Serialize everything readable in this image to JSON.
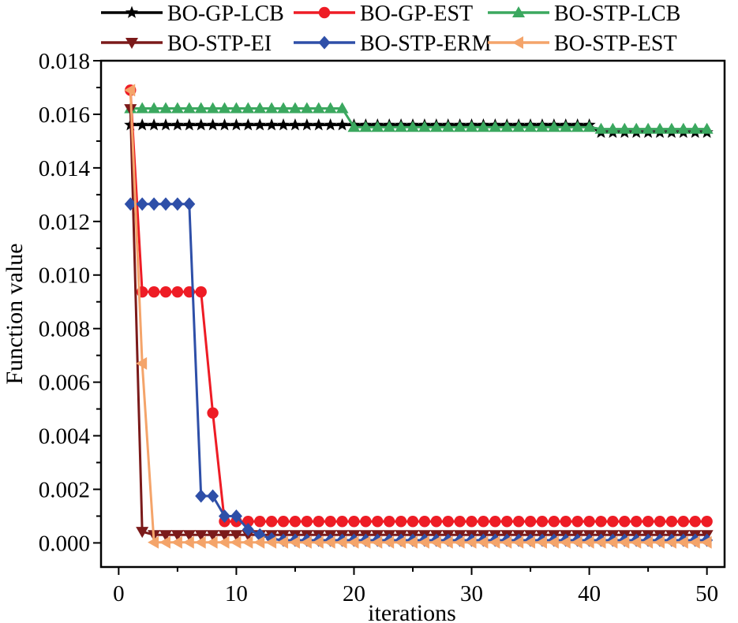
{
  "chart_data": {
    "type": "line",
    "title": "",
    "xlabel": "iterations",
    "ylabel": "Function value",
    "xlim": [
      -1.5,
      51.5
    ],
    "ylim": [
      -0.0009,
      0.018
    ],
    "xticks": [
      0,
      10,
      20,
      30,
      40,
      50
    ],
    "xtick_labels": [
      "0",
      "10",
      "20",
      "30",
      "40",
      "50"
    ],
    "yticks": [
      0.0,
      0.002,
      0.004,
      0.006,
      0.008,
      0.01,
      0.012,
      0.014,
      0.016,
      0.018
    ],
    "ytick_labels": [
      "0.000",
      "0.002",
      "0.004",
      "0.006",
      "0.008",
      "0.010",
      "0.012",
      "0.014",
      "0.016",
      "0.018"
    ],
    "grid": false,
    "legend_position": "top",
    "x": [
      1,
      2,
      3,
      4,
      5,
      6,
      7,
      8,
      9,
      10,
      11,
      12,
      13,
      14,
      15,
      16,
      17,
      18,
      19,
      20,
      21,
      22,
      23,
      24,
      25,
      26,
      27,
      28,
      29,
      30,
      31,
      32,
      33,
      34,
      35,
      36,
      37,
      38,
      39,
      40,
      41,
      42,
      43,
      44,
      45,
      46,
      47,
      48,
      49,
      50
    ],
    "series": [
      {
        "name": "BO-GP-LCB",
        "color": "#000000",
        "marker": "star",
        "values": [
          0.0156,
          0.0156,
          0.0156,
          0.0156,
          0.0156,
          0.0156,
          0.0156,
          0.0156,
          0.0156,
          0.0156,
          0.0156,
          0.0156,
          0.0156,
          0.0156,
          0.0156,
          0.0156,
          0.0156,
          0.0156,
          0.0156,
          0.0156,
          0.0156,
          0.0156,
          0.0156,
          0.0156,
          0.0156,
          0.0156,
          0.0156,
          0.0156,
          0.0156,
          0.0156,
          0.0156,
          0.0156,
          0.0156,
          0.0156,
          0.0156,
          0.0156,
          0.0156,
          0.0156,
          0.0156,
          0.0156,
          0.01532,
          0.01532,
          0.01532,
          0.01532,
          0.01532,
          0.01532,
          0.01532,
          0.01532,
          0.01532,
          0.01532
        ]
      },
      {
        "name": "BO-GP-EST",
        "color": "#ee1c25",
        "marker": "circle",
        "values": [
          0.0169,
          0.00937,
          0.00937,
          0.00937,
          0.00937,
          0.00937,
          0.00937,
          0.00485,
          0.0008,
          0.0008,
          0.0008,
          0.0008,
          0.0008,
          0.0008,
          0.0008,
          0.0008,
          0.0008,
          0.0008,
          0.0008,
          0.0008,
          0.0008,
          0.0008,
          0.0008,
          0.0008,
          0.0008,
          0.0008,
          0.0008,
          0.0008,
          0.0008,
          0.0008,
          0.0008,
          0.0008,
          0.0008,
          0.0008,
          0.0008,
          0.0008,
          0.0008,
          0.0008,
          0.0008,
          0.0008,
          0.0008,
          0.0008,
          0.0008,
          0.0008,
          0.0008,
          0.0008,
          0.0008,
          0.0008,
          0.0008,
          0.0008
        ]
      },
      {
        "name": "BO-STP-LCB",
        "color": "#3ba85f",
        "marker": "triangle-up",
        "values": [
          0.01622,
          0.01622,
          0.01622,
          0.01622,
          0.01622,
          0.01622,
          0.01622,
          0.01622,
          0.01622,
          0.01622,
          0.01622,
          0.01622,
          0.01622,
          0.01622,
          0.01622,
          0.01622,
          0.01622,
          0.01622,
          0.01622,
          0.01552,
          0.01552,
          0.01552,
          0.01552,
          0.01552,
          0.01552,
          0.01552,
          0.01552,
          0.01552,
          0.01552,
          0.01552,
          0.01552,
          0.01552,
          0.01552,
          0.01552,
          0.01552,
          0.01552,
          0.01552,
          0.01552,
          0.01552,
          0.01552,
          0.01545,
          0.01545,
          0.01545,
          0.01545,
          0.01545,
          0.01545,
          0.01545,
          0.01545,
          0.01545,
          0.01545
        ]
      },
      {
        "name": "BO-STP-EI",
        "color": "#7b1a1a",
        "marker": "triangle-down",
        "values": [
          0.0162,
          0.00042,
          0.0003,
          0.0003,
          0.0003,
          0.0003,
          0.0003,
          0.0003,
          0.0003,
          0.0003,
          0.0003,
          0.0003,
          0.0003,
          0.0003,
          0.0003,
          0.0003,
          0.0003,
          0.0003,
          0.0003,
          0.0003,
          0.0003,
          0.0003,
          0.0003,
          0.0003,
          0.0003,
          0.0003,
          0.0003,
          0.0003,
          0.0003,
          0.0003,
          0.0003,
          0.0003,
          0.0003,
          0.0003,
          0.0003,
          0.0003,
          0.0003,
          0.0003,
          0.0003,
          0.0003,
          0.0003,
          0.0003,
          0.0003,
          0.0003,
          0.0003,
          0.0003,
          0.0003,
          0.0003,
          0.0003,
          0.0003
        ]
      },
      {
        "name": "BO-STP-ERM",
        "color": "#2e4fa8",
        "marker": "diamond",
        "values": [
          0.01265,
          0.01265,
          0.01265,
          0.01265,
          0.01265,
          0.01265,
          0.00175,
          0.00175,
          0.001,
          0.001,
          0.0005,
          0.0003,
          0.00015,
          0.0001,
          0.0001,
          0.0001,
          0.0001,
          0.0001,
          0.0001,
          0.0001,
          0.0001,
          0.0001,
          0.0001,
          0.0001,
          0.0001,
          0.0001,
          0.0001,
          0.0001,
          0.0001,
          0.0001,
          0.0001,
          0.0001,
          0.0001,
          0.0001,
          0.0001,
          0.0001,
          0.0001,
          0.0001,
          0.0001,
          0.0001,
          0.0001,
          0.0001,
          0.0001,
          0.0001,
          0.0001,
          0.0001,
          0.0001,
          0.0001,
          0.0001,
          0.0001
        ]
      },
      {
        "name": "BO-STP-EST",
        "color": "#f4a46a",
        "marker": "triangle-left",
        "values": [
          0.0169,
          0.0067,
          2e-05,
          2e-05,
          2e-05,
          2e-05,
          2e-05,
          2e-05,
          2e-05,
          2e-05,
          2e-05,
          2e-05,
          2e-05,
          2e-05,
          2e-05,
          2e-05,
          2e-05,
          2e-05,
          2e-05,
          2e-05,
          2e-05,
          2e-05,
          2e-05,
          2e-05,
          2e-05,
          2e-05,
          2e-05,
          2e-05,
          2e-05,
          2e-05,
          2e-05,
          2e-05,
          2e-05,
          2e-05,
          2e-05,
          2e-05,
          2e-05,
          2e-05,
          2e-05,
          2e-05,
          2e-05,
          2e-05,
          2e-05,
          2e-05,
          2e-05,
          2e-05,
          2e-05,
          2e-05,
          2e-05,
          2e-05
        ]
      }
    ]
  }
}
